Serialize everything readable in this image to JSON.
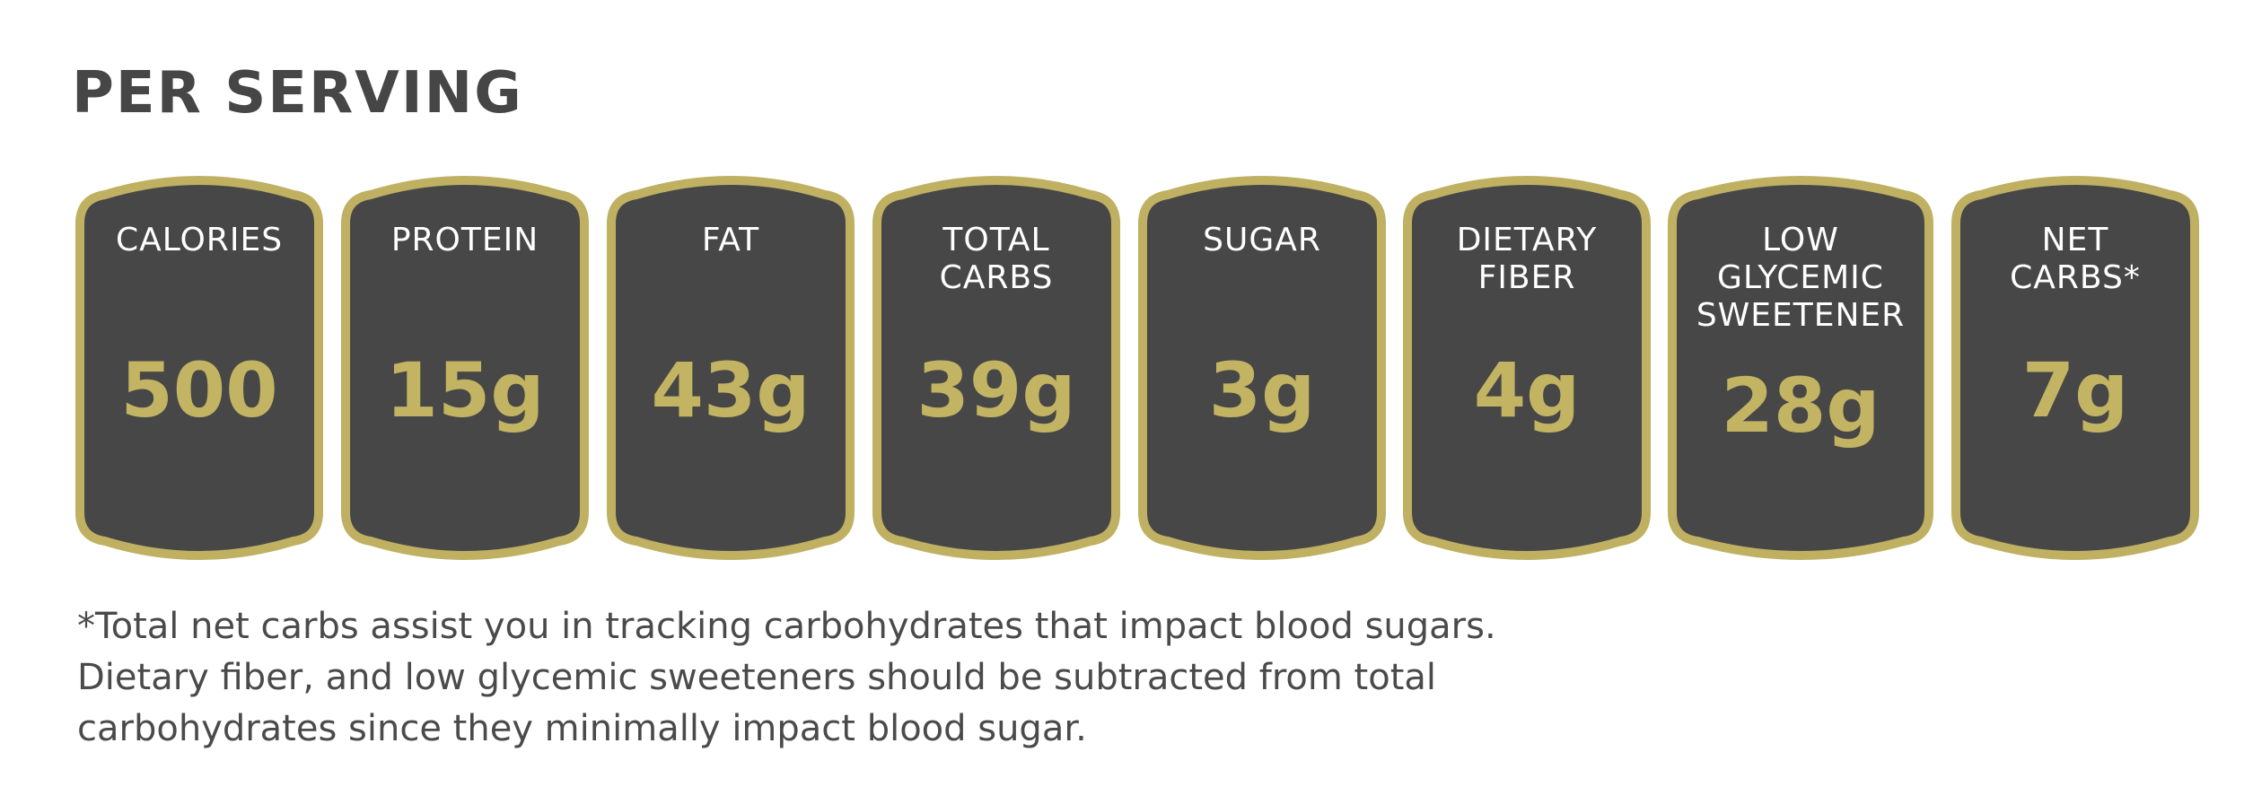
{
  "heading": "PER SERVING",
  "colors": {
    "card_fill": "#474747",
    "card_border": "#bfb062",
    "value_text": "#c2b462",
    "label_text": "#ffffff",
    "heading_text": "#464646"
  },
  "nutrients": [
    {
      "label": "CALORIES",
      "value": "500"
    },
    {
      "label": "PROTEIN",
      "value": "15g"
    },
    {
      "label": "FAT",
      "value": "43g"
    },
    {
      "label": "TOTAL\nCARBS",
      "value": "39g"
    },
    {
      "label": "SUGAR",
      "value": "3g"
    },
    {
      "label": "DIETARY\nFIBER",
      "value": "4g"
    },
    {
      "label": "LOW\nGLYCEMIC\nSWEETENER",
      "value": "28g"
    },
    {
      "label": "NET\nCARBS*",
      "value": "7g"
    }
  ],
  "footnote": {
    "lines": [
      "*Total net carbs assist you in tracking carbohydrates that impact blood sugars.",
      "Dietary fiber, and low glycemic sweeteners should be subtracted from total",
      "carbohydrates since they minimally impact blood sugar."
    ]
  }
}
